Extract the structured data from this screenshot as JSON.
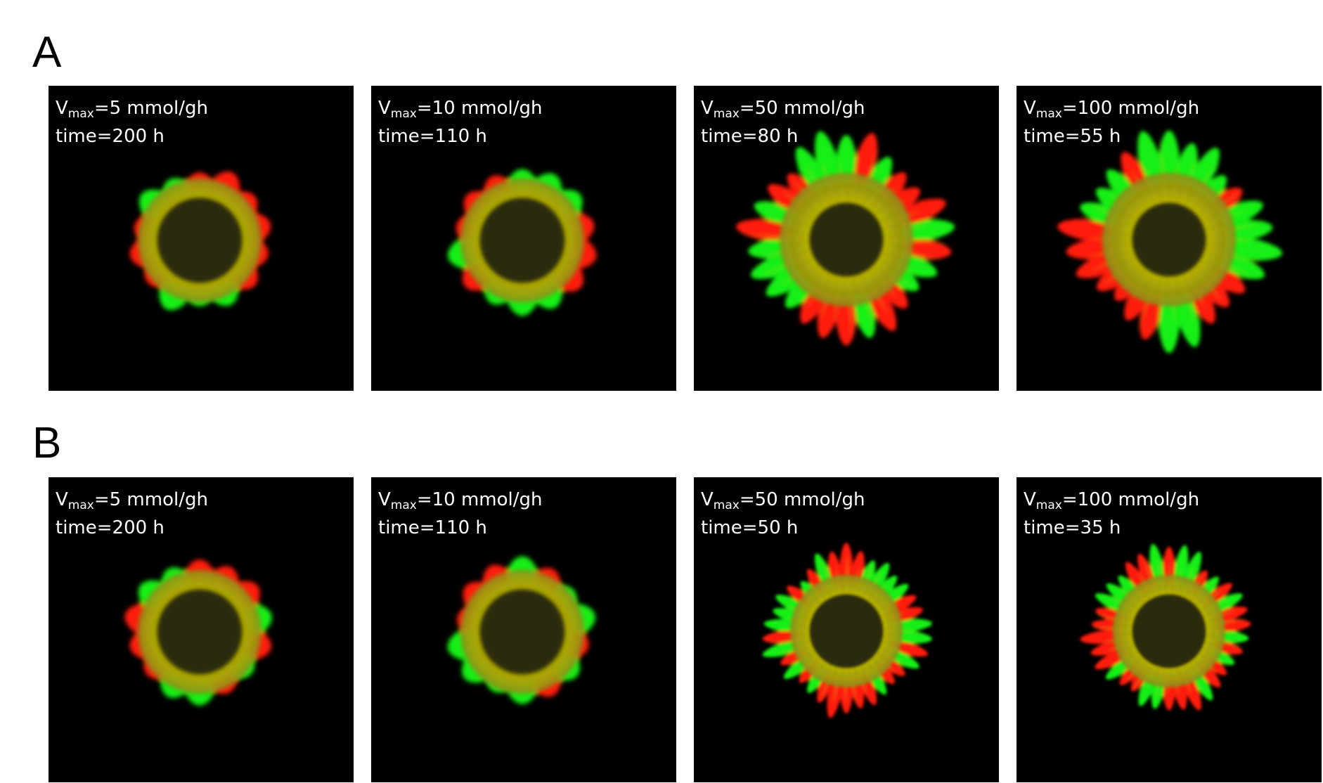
{
  "rows": [
    {
      "label": "A",
      "panels": [
        {
          "v_symbol": "V",
          "v_sub": "max",
          "v_value": "=5 mmol/gh",
          "time": "time=200 h",
          "vmax": 5,
          "hours": 200,
          "colony": "small-round"
        },
        {
          "v_symbol": "V",
          "v_sub": "max",
          "v_value": "=10 mmol/gh",
          "time": "time=110 h",
          "vmax": 10,
          "hours": 110,
          "colony": "small-round"
        },
        {
          "v_symbol": "V",
          "v_sub": "max",
          "v_value": "=50 mmol/gh",
          "time": "time=80 h",
          "vmax": 50,
          "hours": 80,
          "colony": "large-diamond"
        },
        {
          "v_symbol": "V",
          "v_sub": "max",
          "v_value": "=100 mmol/gh",
          "time": "time=55 h",
          "vmax": 100,
          "hours": 55,
          "colony": "large-diamond"
        }
      ]
    },
    {
      "label": "B",
      "panels": [
        {
          "v_symbol": "V",
          "v_sub": "max",
          "v_value": "=5 mmol/gh",
          "time": "time=200 h",
          "vmax": 5,
          "hours": 200,
          "colony": "small-round"
        },
        {
          "v_symbol": "V",
          "v_sub": "max",
          "v_value": "=10 mmol/gh",
          "time": "time=110 h",
          "vmax": 10,
          "hours": 110,
          "colony": "small-round"
        },
        {
          "v_symbol": "V",
          "v_sub": "max",
          "v_value": "=50 mmol/gh",
          "time": "time=50 h",
          "vmax": 50,
          "hours": 50,
          "colony": "spiky-diamond"
        },
        {
          "v_symbol": "V",
          "v_sub": "max",
          "v_value": "=100 mmol/gh",
          "time": "time=35 h",
          "vmax": 100,
          "hours": 35,
          "colony": "spiky-diamond"
        }
      ]
    }
  ],
  "colors": {
    "red": "#ff1a10",
    "green": "#14f014",
    "yellow": "#c8c200",
    "core": "#2b2a08",
    "background": "#000000"
  }
}
